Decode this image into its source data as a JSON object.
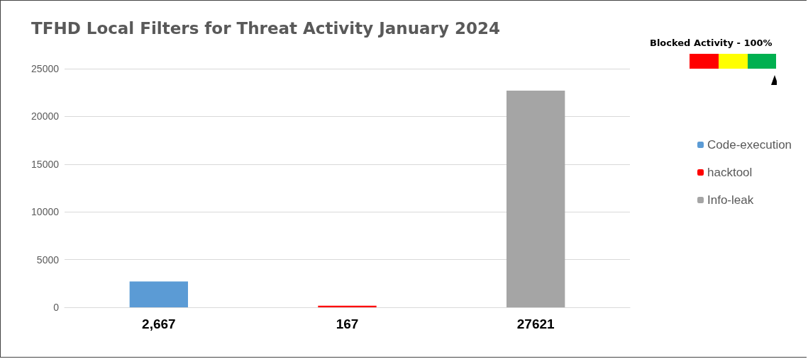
{
  "chart_data": {
    "type": "bar",
    "title": "TFHD Local Filters for Threat Activity January 2024",
    "categories": [
      "2,667",
      "167",
      "27621"
    ],
    "series": [
      {
        "name": "Code-execution",
        "color": "#5b9bd5",
        "values": [
          2700,
          null,
          null
        ]
      },
      {
        "name": "hacktool",
        "color": "#ff0000",
        "values": [
          null,
          170,
          null
        ]
      },
      {
        "name": "Info-leak",
        "color": "#a5a5a5",
        "values": [
          null,
          null,
          22700
        ]
      }
    ],
    "ylim": [
      0,
      25000
    ],
    "yticks": [
      0,
      5000,
      10000,
      15000,
      20000,
      25000
    ],
    "grid": "y",
    "legend": "right",
    "annotations": [
      "Blocked Activity - 100%"
    ]
  }
}
